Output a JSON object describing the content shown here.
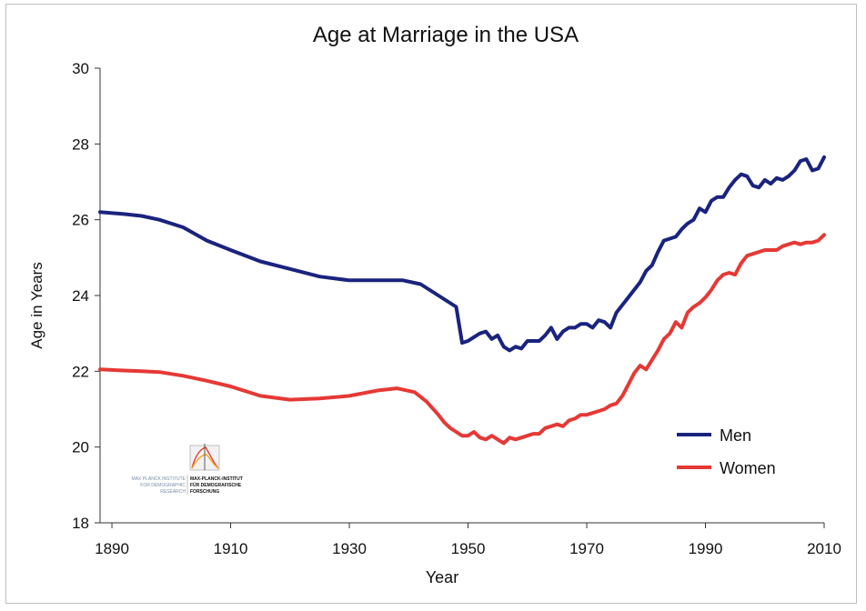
{
  "chart_data": {
    "type": "line",
    "title": "Age at Marriage in the USA",
    "xlabel": "Year",
    "ylabel": "Age in Years",
    "xlim": [
      1888,
      2010
    ],
    "ylim": [
      18,
      30
    ],
    "xticks": [
      1890,
      1910,
      1930,
      1950,
      1970,
      1990,
      2010
    ],
    "yticks": [
      18,
      20,
      22,
      24,
      26,
      28,
      30
    ],
    "grid": false,
    "legend_position": "bottom-right",
    "series": [
      {
        "name": "Men",
        "color": "#1a237e",
        "points": [
          [
            1888,
            26.2
          ],
          [
            1892,
            26.15
          ],
          [
            1895,
            26.1
          ],
          [
            1898,
            26.0
          ],
          [
            1902,
            25.8
          ],
          [
            1906,
            25.45
          ],
          [
            1910,
            25.2
          ],
          [
            1915,
            24.9
          ],
          [
            1920,
            24.7
          ],
          [
            1925,
            24.5
          ],
          [
            1930,
            24.4
          ],
          [
            1935,
            24.4
          ],
          [
            1939,
            24.4
          ],
          [
            1942,
            24.3
          ],
          [
            1945,
            24.0
          ],
          [
            1948,
            23.7
          ],
          [
            1949,
            22.75
          ],
          [
            1950,
            22.8
          ],
          [
            1951,
            22.9
          ],
          [
            1952,
            23.0
          ],
          [
            1953,
            23.05
          ],
          [
            1954,
            22.85
          ],
          [
            1955,
            22.95
          ],
          [
            1956,
            22.65
          ],
          [
            1957,
            22.55
          ],
          [
            1958,
            22.65
          ],
          [
            1959,
            22.6
          ],
          [
            1960,
            22.8
          ],
          [
            1961,
            22.8
          ],
          [
            1962,
            22.8
          ],
          [
            1963,
            22.95
          ],
          [
            1964,
            23.15
          ],
          [
            1965,
            22.85
          ],
          [
            1966,
            23.05
          ],
          [
            1967,
            23.15
          ],
          [
            1968,
            23.15
          ],
          [
            1969,
            23.25
          ],
          [
            1970,
            23.25
          ],
          [
            1971,
            23.15
          ],
          [
            1972,
            23.35
          ],
          [
            1973,
            23.3
          ],
          [
            1974,
            23.15
          ],
          [
            1975,
            23.55
          ],
          [
            1977,
            23.95
          ],
          [
            1979,
            24.35
          ],
          [
            1980,
            24.65
          ],
          [
            1981,
            24.8
          ],
          [
            1982,
            25.15
          ],
          [
            1983,
            25.45
          ],
          [
            1984,
            25.5
          ],
          [
            1985,
            25.55
          ],
          [
            1986,
            25.75
          ],
          [
            1987,
            25.9
          ],
          [
            1988,
            26.0
          ],
          [
            1989,
            26.3
          ],
          [
            1990,
            26.2
          ],
          [
            1991,
            26.5
          ],
          [
            1992,
            26.6
          ],
          [
            1993,
            26.6
          ],
          [
            1994,
            26.85
          ],
          [
            1995,
            27.05
          ],
          [
            1996,
            27.2
          ],
          [
            1997,
            27.15
          ],
          [
            1998,
            26.9
          ],
          [
            1999,
            26.85
          ],
          [
            2000,
            27.05
          ],
          [
            2001,
            26.95
          ],
          [
            2002,
            27.1
          ],
          [
            2003,
            27.05
          ],
          [
            2004,
            27.15
          ],
          [
            2005,
            27.3
          ],
          [
            2006,
            27.55
          ],
          [
            2007,
            27.6
          ],
          [
            2008,
            27.3
          ],
          [
            2009,
            27.35
          ],
          [
            2010,
            27.65
          ]
        ]
      },
      {
        "name": "Women",
        "color": "#e53935",
        "points": [
          [
            1888,
            22.05
          ],
          [
            1892,
            22.02
          ],
          [
            1895,
            22.0
          ],
          [
            1898,
            21.98
          ],
          [
            1902,
            21.88
          ],
          [
            1906,
            21.75
          ],
          [
            1910,
            21.6
          ],
          [
            1915,
            21.35
          ],
          [
            1920,
            21.25
          ],
          [
            1925,
            21.28
          ],
          [
            1930,
            21.35
          ],
          [
            1935,
            21.5
          ],
          [
            1938,
            21.55
          ],
          [
            1941,
            21.45
          ],
          [
            1943,
            21.2
          ],
          [
            1945,
            20.85
          ],
          [
            1946,
            20.65
          ],
          [
            1947,
            20.5
          ],
          [
            1948,
            20.4
          ],
          [
            1949,
            20.3
          ],
          [
            1950,
            20.3
          ],
          [
            1951,
            20.4
          ],
          [
            1952,
            20.25
          ],
          [
            1953,
            20.2
          ],
          [
            1954,
            20.3
          ],
          [
            1955,
            20.2
          ],
          [
            1956,
            20.1
          ],
          [
            1957,
            20.25
          ],
          [
            1958,
            20.2
          ],
          [
            1959,
            20.25
          ],
          [
            1960,
            20.3
          ],
          [
            1961,
            20.35
          ],
          [
            1962,
            20.35
          ],
          [
            1963,
            20.5
          ],
          [
            1964,
            20.55
          ],
          [
            1965,
            20.6
          ],
          [
            1966,
            20.55
          ],
          [
            1967,
            20.7
          ],
          [
            1968,
            20.75
          ],
          [
            1969,
            20.85
          ],
          [
            1970,
            20.85
          ],
          [
            1971,
            20.9
          ],
          [
            1972,
            20.95
          ],
          [
            1973,
            21.0
          ],
          [
            1974,
            21.1
          ],
          [
            1975,
            21.15
          ],
          [
            1976,
            21.35
          ],
          [
            1977,
            21.65
          ],
          [
            1978,
            21.95
          ],
          [
            1979,
            22.15
          ],
          [
            1980,
            22.05
          ],
          [
            1981,
            22.3
          ],
          [
            1982,
            22.55
          ],
          [
            1983,
            22.85
          ],
          [
            1984,
            23.0
          ],
          [
            1985,
            23.3
          ],
          [
            1986,
            23.15
          ],
          [
            1987,
            23.55
          ],
          [
            1988,
            23.7
          ],
          [
            1989,
            23.8
          ],
          [
            1990,
            23.95
          ],
          [
            1991,
            24.15
          ],
          [
            1992,
            24.4
          ],
          [
            1993,
            24.55
          ],
          [
            1994,
            24.6
          ],
          [
            1995,
            24.55
          ],
          [
            1996,
            24.85
          ],
          [
            1997,
            25.05
          ],
          [
            1998,
            25.1
          ],
          [
            1999,
            25.15
          ],
          [
            2000,
            25.2
          ],
          [
            2001,
            25.2
          ],
          [
            2002,
            25.2
          ],
          [
            2003,
            25.3
          ],
          [
            2004,
            25.35
          ],
          [
            2005,
            25.4
          ],
          [
            2006,
            25.35
          ],
          [
            2007,
            25.4
          ],
          [
            2008,
            25.4
          ],
          [
            2009,
            25.45
          ],
          [
            2010,
            25.6
          ]
        ]
      }
    ]
  },
  "logo": {
    "left_lines": [
      "MAX PLANCK INSTITUTE",
      "FOR DEMOGRAPHIC",
      "RESEARCH"
    ],
    "right_lines": [
      "MAX-PLANCK-INSTITUT",
      "FÜR DEMOGRAFISCHE",
      "FORSCHUNG"
    ]
  }
}
